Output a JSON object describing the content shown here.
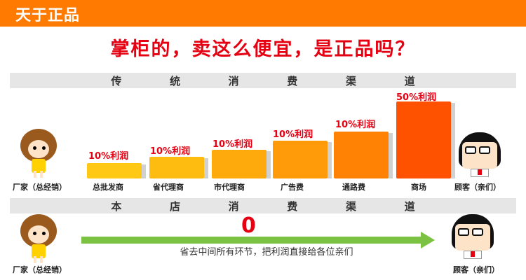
{
  "banner": {
    "title": "天于正品"
  },
  "headline": "掌柜的，卖这么便宜，是正品吗？",
  "traditional": {
    "header": [
      "传",
      "统",
      "消",
      "费",
      "渠",
      "道"
    ],
    "manufacturer_label": "厂家（总经销）",
    "customer_label": "顾客（亲们）",
    "channels": [
      {
        "label": "总批发商",
        "profit": "10%利润",
        "color": "#ffc814"
      },
      {
        "label": "省代理商",
        "profit": "10%利润",
        "color": "#ffbc10"
      },
      {
        "label": "市代理商",
        "profit": "10%利润",
        "color": "#ffaa0c"
      },
      {
        "label": "广告费",
        "profit": "10%利润",
        "color": "#ff9a08"
      },
      {
        "label": "通路费",
        "profit": "10%利润",
        "color": "#ff8204"
      },
      {
        "label": "商场",
        "profit": "50%利润",
        "color": "#ff5200"
      }
    ]
  },
  "store": {
    "header": [
      "本",
      "店",
      "消",
      "费",
      "渠",
      "道"
    ],
    "manufacturer_label": "厂家（总经销）",
    "customer_label": "顾客（亲们）",
    "middle_cost": "0",
    "note": "省去中间所有环节，把利润直接给各位亲们"
  }
}
